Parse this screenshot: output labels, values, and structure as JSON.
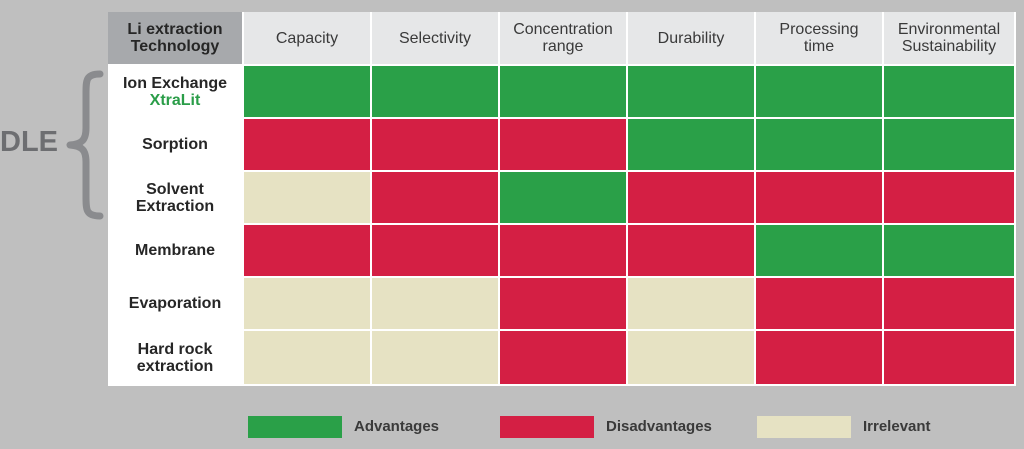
{
  "colors": {
    "advantages": "#2aa048",
    "disadvantages": "#d41f44",
    "irrelevant": "#e6e2c3",
    "brand": "#2a9d48"
  },
  "group": {
    "label": "DLE",
    "brace_icon": "curly-brace-icon"
  },
  "chart_data": {
    "type": "table",
    "corner_header": "Li extraction\nTechnology",
    "columns": [
      "Capacity",
      "Selectivity",
      "Concentration\nrange",
      "Durability",
      "Processing\ntime",
      "Environmental\nSustainability"
    ],
    "rows": [
      {
        "label": "Ion Exchange",
        "brand": "XtraLit",
        "values": [
          "advantages",
          "advantages",
          "advantages",
          "advantages",
          "advantages",
          "advantages"
        ]
      },
      {
        "label": "Sorption",
        "brand": "",
        "values": [
          "disadvantages",
          "disadvantages",
          "disadvantages",
          "advantages",
          "advantages",
          "advantages"
        ]
      },
      {
        "label": "Solvent\nExtraction",
        "brand": "",
        "values": [
          "irrelevant",
          "disadvantages",
          "advantages",
          "disadvantages",
          "disadvantages",
          "disadvantages"
        ]
      },
      {
        "label": "Membrane",
        "brand": "",
        "values": [
          "disadvantages",
          "disadvantages",
          "disadvantages",
          "disadvantages",
          "advantages",
          "advantages"
        ]
      },
      {
        "label": "Evaporation",
        "brand": "",
        "values": [
          "irrelevant",
          "irrelevant",
          "disadvantages",
          "irrelevant",
          "disadvantages",
          "disadvantages"
        ]
      },
      {
        "label": "Hard rock\nextraction",
        "brand": "",
        "values": [
          "irrelevant",
          "irrelevant",
          "disadvantages",
          "irrelevant",
          "disadvantages",
          "disadvantages"
        ]
      }
    ],
    "legend": [
      {
        "key": "advantages",
        "label": "Advantages"
      },
      {
        "key": "disadvantages",
        "label": "Disadvantages"
      },
      {
        "key": "irrelevant",
        "label": "Irrelevant"
      }
    ]
  }
}
